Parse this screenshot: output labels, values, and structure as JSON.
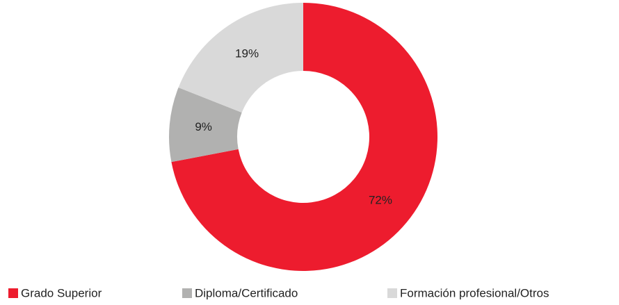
{
  "chart_data": {
    "type": "donut",
    "categories": [
      "Grado Superior",
      "Diploma/Certificado",
      "Formación profesional/Otros"
    ],
    "values": [
      72,
      9,
      19
    ],
    "value_labels": [
      "72%",
      "9%",
      "19%"
    ],
    "colors": [
      "#ed1c2e",
      "#b1b1b0",
      "#d9d9d9"
    ],
    "legend": "bottom"
  }
}
